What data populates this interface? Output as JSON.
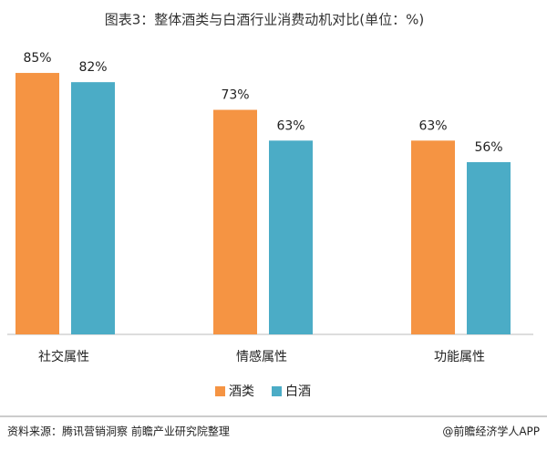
{
  "chart_data": {
    "type": "bar",
    "title": "图表3：整体酒类与白酒行业消费动机对比(单位：%)",
    "categories": [
      "社交属性",
      "情感属性",
      "功能属性"
    ],
    "series": [
      {
        "name": "酒类",
        "color": "#f59443",
        "values": [
          85,
          73,
          63
        ],
        "value_labels": [
          "85%",
          "73%",
          "63%"
        ]
      },
      {
        "name": "白酒",
        "color": "#4bacc6",
        "values": [
          82,
          63,
          56
        ],
        "value_labels": [
          "82%",
          "63%",
          "56%"
        ]
      }
    ]
  },
  "footer": {
    "source": "资料来源：腾讯营销洞察 前瞻产业研究院整理",
    "credit": "@前瞻经济学人APP"
  }
}
